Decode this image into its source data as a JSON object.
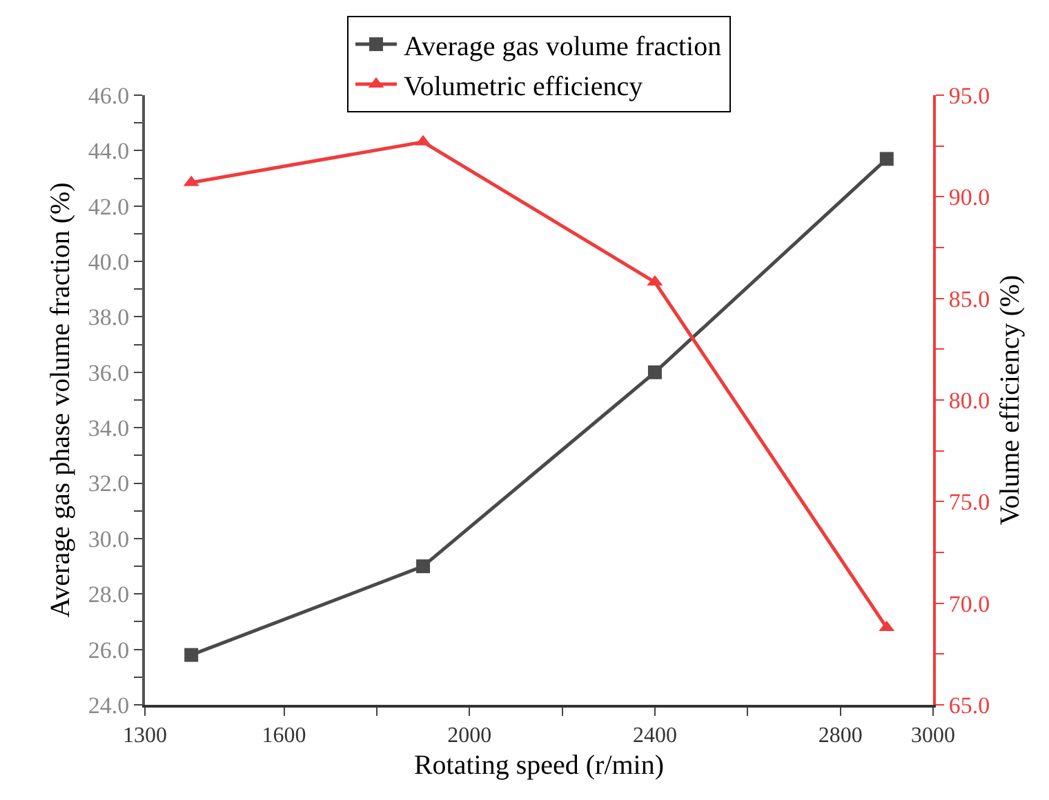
{
  "chart_data": {
    "type": "line",
    "xlabel": "Rotating speed (r/min)",
    "ylabel": "Average gas phase volume fraction (%)",
    "y2label": "Volume efficiency (%)",
    "x": [
      1400,
      1900,
      2400,
      2900
    ],
    "series": [
      {
        "name": "Average gas volume fraction",
        "color": "#4a4a4a",
        "marker": "square",
        "values": [
          25.8,
          29.0,
          36.0,
          43.7
        ]
      },
      {
        "name": "Volumetric efficiency",
        "color": "#f03c3c",
        "marker": "triangle",
        "axis": "y2",
        "values": [
          90.7,
          92.7,
          85.8,
          68.8
        ]
      }
    ],
    "xlim": [
      1300,
      3000
    ],
    "xticks": [
      1300,
      1600,
      {
        "value": 1800,
        "label": null
      },
      2000,
      {
        "value": 2200,
        "label": null
      },
      2400,
      {
        "value": 2600,
        "label": null
      },
      2800,
      3000
    ],
    "ylim": [
      24,
      46
    ],
    "yticks": [
      {
        "value": 24,
        "label": "24.0"
      },
      {
        "value": 25,
        "label": null
      },
      {
        "value": 26,
        "label": "26.0"
      },
      {
        "value": 27,
        "label": null
      },
      {
        "value": 28,
        "label": "28.0"
      },
      {
        "value": 29,
        "label": null
      },
      {
        "value": 30,
        "label": "30.0"
      },
      {
        "value": 31,
        "label": null
      },
      {
        "value": 32,
        "label": "32.0"
      },
      {
        "value": 33,
        "label": null
      },
      {
        "value": 34,
        "label": "34.0"
      },
      {
        "value": 35,
        "label": null
      },
      {
        "value": 36,
        "label": "36.0"
      },
      {
        "value": 37,
        "label": null
      },
      {
        "value": 38,
        "label": "38.0"
      },
      {
        "value": 39,
        "label": null
      },
      {
        "value": 40,
        "label": "40.0"
      },
      {
        "value": 41,
        "label": null
      },
      {
        "value": 42,
        "label": "42.0"
      },
      {
        "value": 43,
        "label": null
      },
      {
        "value": 44,
        "label": "44.0"
      },
      {
        "value": 45,
        "label": null
      },
      {
        "value": 46,
        "label": "46.0"
      }
    ],
    "y2lim": [
      65,
      95
    ],
    "y2ticks": [
      {
        "value": 65,
        "label": "65.0"
      },
      {
        "value": 67.5,
        "label": null
      },
      {
        "value": 70,
        "label": "70.0"
      },
      {
        "value": 72.5,
        "label": null
      },
      {
        "value": 75,
        "label": "75.0"
      },
      {
        "value": 77.5,
        "label": null
      },
      {
        "value": 80,
        "label": "80.0"
      },
      {
        "value": 82.5,
        "label": null
      },
      {
        "value": 85,
        "label": "85.0"
      },
      {
        "value": 87.5,
        "label": null
      },
      {
        "value": 90,
        "label": "90.0"
      },
      {
        "value": 92.5,
        "label": null
      },
      {
        "value": 95,
        "label": "95.0"
      }
    ],
    "grid": false,
    "legend": "top",
    "line_style": "solid"
  }
}
